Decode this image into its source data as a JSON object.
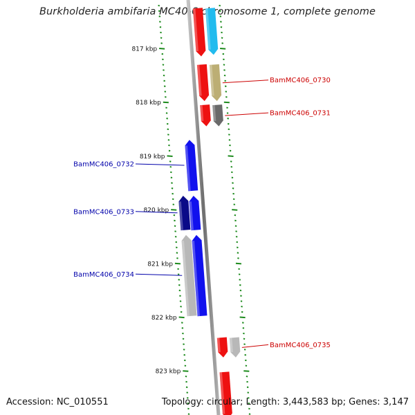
{
  "title": "Burkholderia ambifaria MC40-6 chromosome 1, complete genome",
  "footer": {
    "accession": "Accession: NC_010551",
    "topology": "Topology: circular; Length: 3,443,583 bp; Genes: 3,147"
  },
  "colors": {
    "backbone": "#8c8c8c",
    "tick": "#1c8a1c",
    "forward_label": "#cc0000",
    "reverse_label": "#0000aa"
  },
  "ticks": [
    {
      "label": "817 kbp",
      "pos_kbp": 817
    },
    {
      "label": "818 kbp",
      "pos_kbp": 818
    },
    {
      "label": "819 kbp",
      "pos_kbp": 819
    },
    {
      "label": "820 kbp",
      "pos_kbp": 820
    },
    {
      "label": "821 kbp",
      "pos_kbp": 821
    },
    {
      "label": "822 kbp",
      "pos_kbp": 822
    },
    {
      "label": "823 kbp",
      "pos_kbp": 823
    }
  ],
  "features": [
    {
      "strand": "+",
      "track": 1,
      "color": "#ee1111",
      "start_kbp": 816.25,
      "end_kbp": 817.15
    },
    {
      "strand": "+",
      "track": 2,
      "color": "#22bbee",
      "start_kbp": 816.25,
      "end_kbp": 817.12
    },
    {
      "strand": "+",
      "track": 1,
      "color": "#ee1111",
      "start_kbp": 817.3,
      "end_kbp": 817.98
    },
    {
      "strand": "+",
      "track": 2,
      "color": "#bcae74",
      "start_kbp": 817.3,
      "end_kbp": 817.98,
      "label": "BamMC406_0730"
    },
    {
      "strand": "+",
      "track": 1,
      "color": "#ee1111",
      "start_kbp": 818.05,
      "end_kbp": 818.45
    },
    {
      "strand": "+",
      "track": 2,
      "color": "#6a6a6a",
      "start_kbp": 818.05,
      "end_kbp": 818.45,
      "label": "BamMC406_0731"
    },
    {
      "strand": "-",
      "track": 1,
      "color": "#1111ee",
      "start_kbp": 818.7,
      "end_kbp": 819.65,
      "label": "BamMC406_0732"
    },
    {
      "strand": "-",
      "track": 1,
      "color": "#1111ee",
      "start_kbp": 819.74,
      "end_kbp": 820.38
    },
    {
      "strand": "-",
      "track": 2,
      "color": "#0a0a88",
      "start_kbp": 819.74,
      "end_kbp": 820.38,
      "label": "BamMC406_0733"
    },
    {
      "strand": "-",
      "track": 1,
      "color": "#1111ee",
      "start_kbp": 820.47,
      "end_kbp": 821.98
    },
    {
      "strand": "-",
      "track": 2,
      "color": "#b8b8b8",
      "start_kbp": 820.47,
      "end_kbp": 821.98,
      "label": "BamMC406_0734"
    },
    {
      "strand": "+",
      "track": 1,
      "color": "#ee1111",
      "start_kbp": 822.38,
      "end_kbp": 822.75
    },
    {
      "strand": "+",
      "track": 2,
      "color": "#b8b8b8",
      "start_kbp": 822.38,
      "end_kbp": 822.75,
      "label": "BamMC406_0735"
    },
    {
      "strand": "+",
      "track": 1,
      "color": "#ee1111",
      "start_kbp": 823.02,
      "end_kbp": 823.9
    }
  ]
}
